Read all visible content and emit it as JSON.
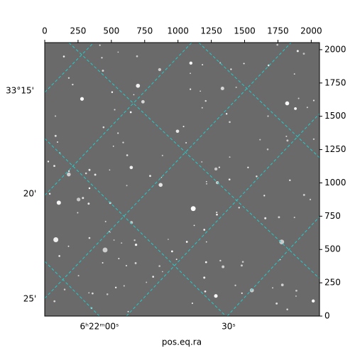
{
  "chart_data": {
    "type": "image",
    "xlabel": "pos.eq.ra",
    "xlim": [
      0,
      2062
    ],
    "xticks": [
      0,
      250,
      500,
      750,
      1000,
      1250,
      1500,
      1750,
      2000
    ],
    "ylim": [
      0,
      2053
    ],
    "yticks": [
      0,
      250,
      500,
      750,
      1000,
      1250,
      1500,
      1750,
      2000
    ],
    "ra_ticks": [
      "6ʰ22ᵐ00ˢ",
      "30ˢ"
    ],
    "dec_ticks": [
      "33°15'",
      "20'",
      "25'"
    ],
    "grid_color": "#22cccc"
  }
}
